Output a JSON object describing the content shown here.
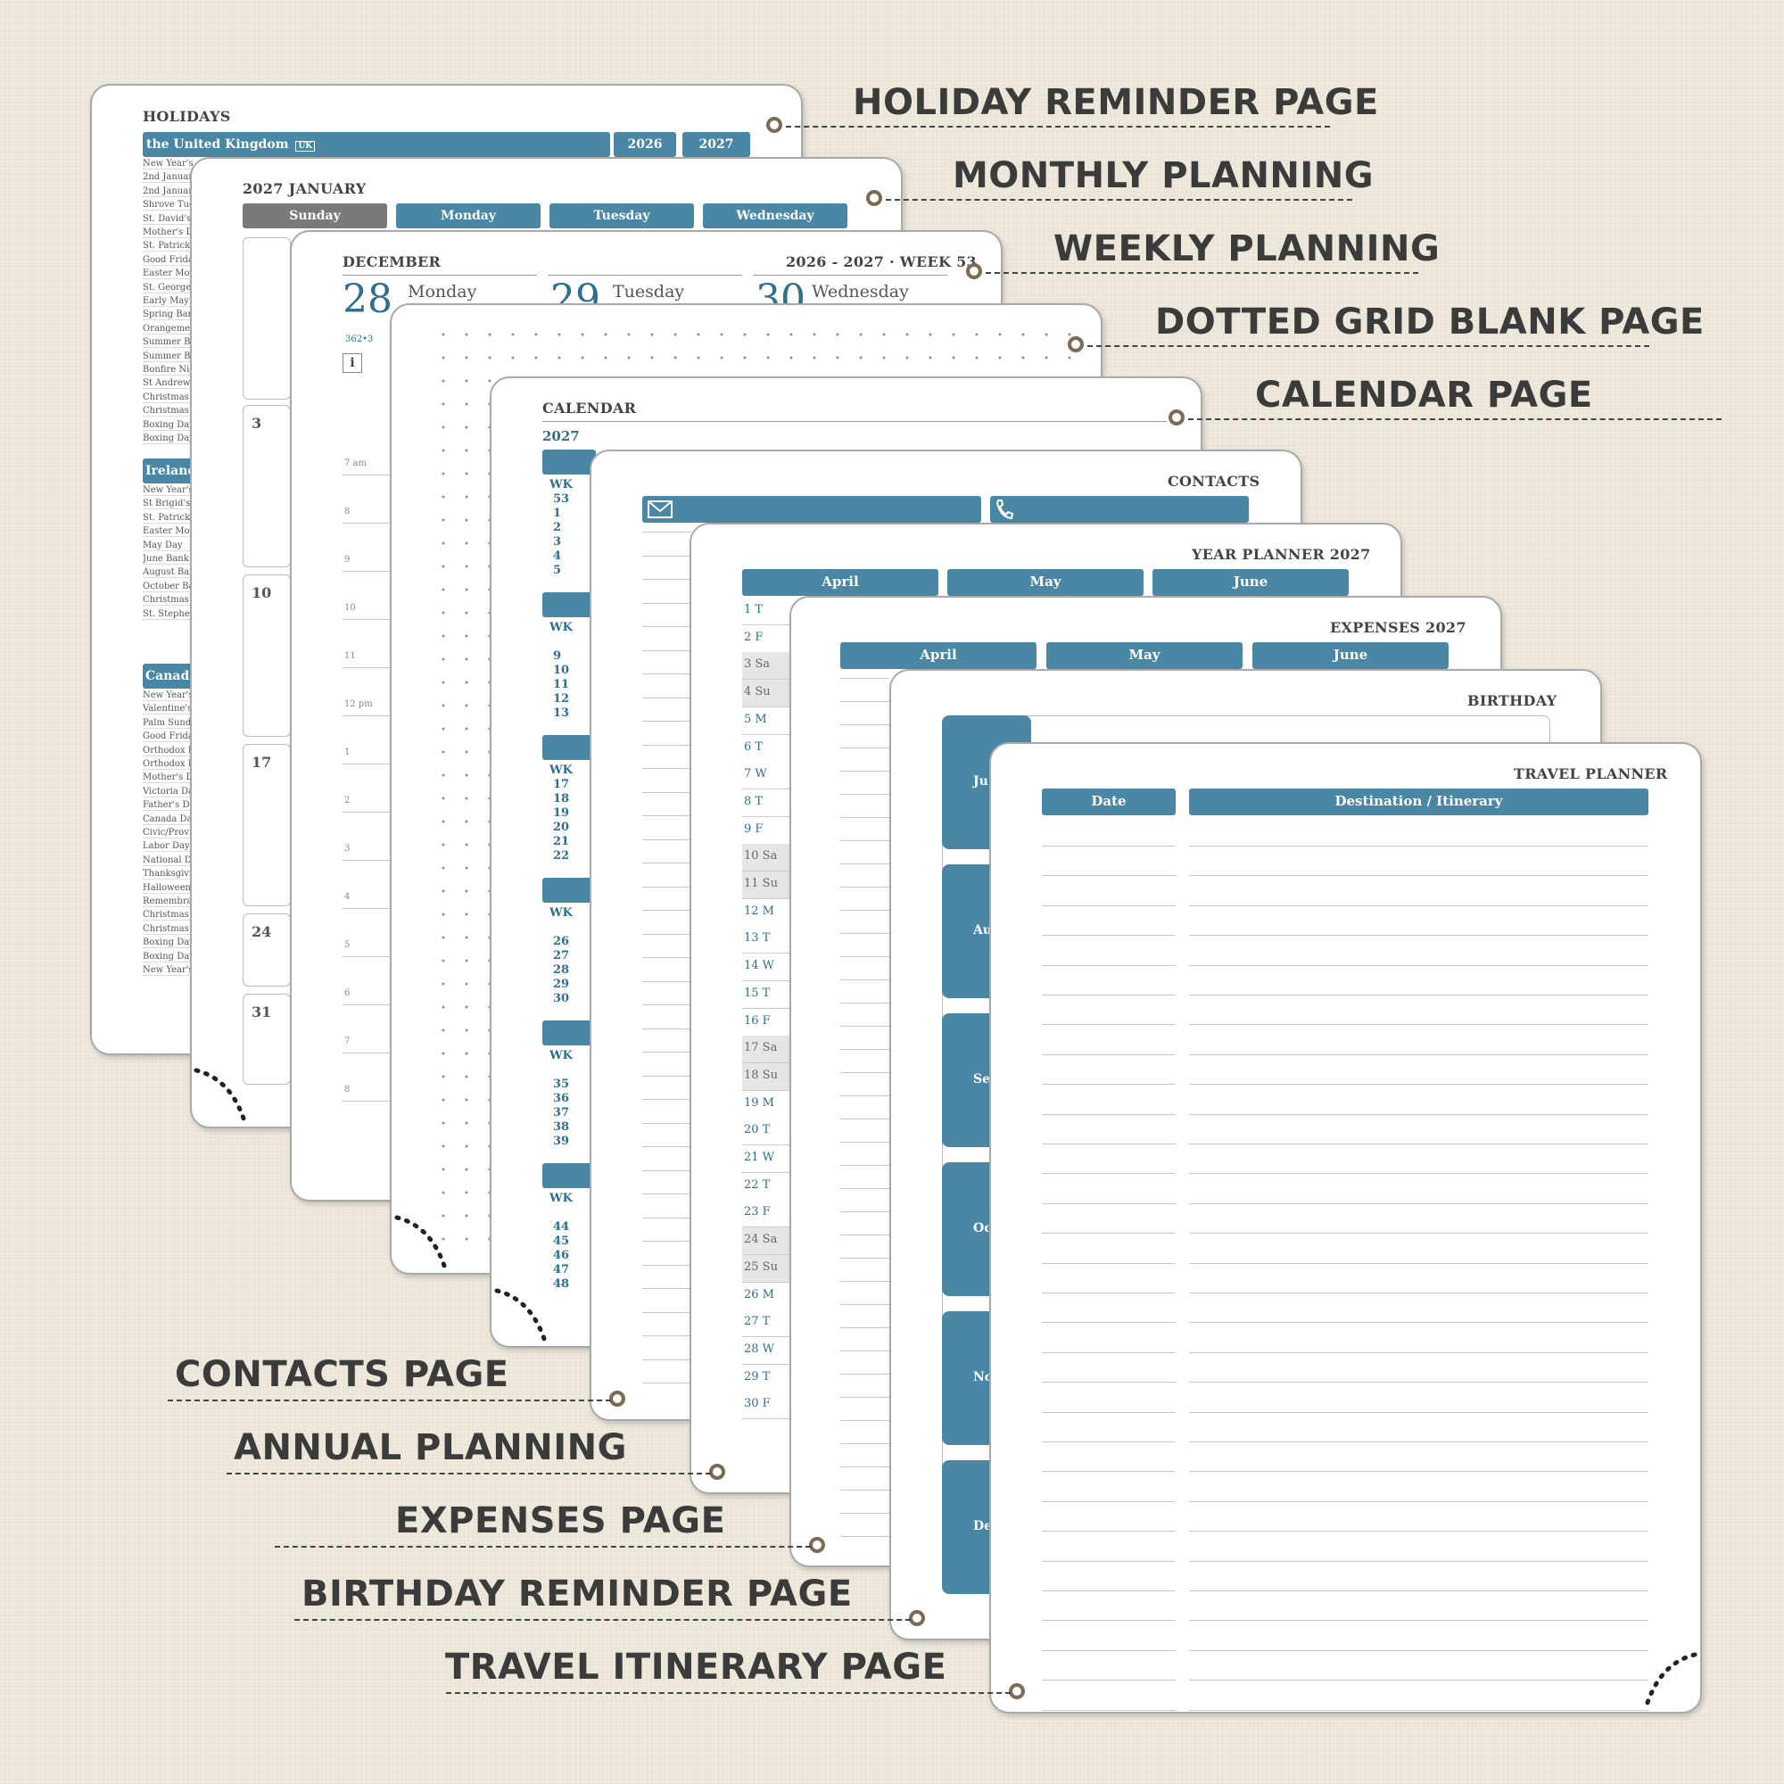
{
  "labels": {
    "holiday": "HOLIDAY REMINDER PAGE",
    "monthly": "MONTHLY PLANNING",
    "weekly": "WEEKLY PLANNING",
    "dotted": "DOTTED GRID BLANK PAGE",
    "calendar": "CALENDAR PAGE",
    "contacts": "CONTACTS PAGE",
    "annual": "ANNUAL PLANNING",
    "expenses": "EXPENSES PAGE",
    "birthday": "BIRTHDAY REMINDER PAGE",
    "travel": "TRAVEL ITINERARY PAGE"
  },
  "holidays": {
    "title": "HOLIDAYS",
    "country_uk": "the United Kingdom",
    "uk_badge": "UK",
    "year1": "2026",
    "year2": "2027",
    "uk_list": [
      "New Year's D",
      "2nd Januar",
      "2nd Januar",
      "Shrove Tue",
      "St. David's",
      "Mother's D",
      "St. Patrick's",
      "Good Frida",
      "Easter Mon",
      "St. George'",
      "Early May B",
      "Spring Ban",
      "Orangemen",
      "Summer Ba",
      "Summer Ba",
      "Bonfire Nig",
      "St Andrew'",
      "Christmas",
      "Christmas",
      "Boxing Day",
      "Boxing Day"
    ],
    "country_ie": "Ireland",
    "ie_list": [
      "New Year's",
      "St Brigid's",
      "St. Patrick's",
      "Easter Mon",
      "May Day",
      "June Bank",
      "August Ban",
      "October Ba",
      "Christmas",
      "St. Stephen"
    ],
    "country_ca": "Canada",
    "ca_list": [
      "New Year's",
      "Valentine's",
      "Palm Sunda",
      "Good Frida",
      "Orthodox E",
      "Orthodox E",
      "Mother's D",
      "Victoria Da",
      "Father's Da",
      "Canada Day",
      "Civic/Provi",
      "Labor Day",
      "National D",
      "Thanksgivi",
      "Halloween",
      "Remembra",
      "Christmas",
      "Christmas",
      "Boxing Day",
      "Boxing Day",
      "New Year's"
    ]
  },
  "monthly": {
    "title": "2027 JANUARY",
    "days": [
      "Sunday",
      "Monday",
      "Tuesday",
      "Wednesday"
    ],
    "dates": [
      "3",
      "10",
      "17",
      "24",
      "31"
    ]
  },
  "weekly": {
    "month": "DECEMBER",
    "week": "2026 - 2027 · WEEK 53",
    "d1_num": "28",
    "d1_name": "Monday",
    "d2_num": "29",
    "d2_name": "Tuesday",
    "d3_num": "30",
    "d3_name": "Wednesday",
    "day_of_year": "362•3",
    "info_icon": "i",
    "hours": [
      "7 am",
      "8",
      "9",
      "10",
      "11",
      "12 pm",
      "1",
      "2",
      "3",
      "4",
      "5",
      "6",
      "7",
      "8"
    ]
  },
  "calendar": {
    "title": "CALENDAR",
    "year": "2027",
    "wk_label": "WK",
    "blocks": [
      [
        "53",
        "1",
        "2",
        "3",
        "4",
        "5"
      ],
      [
        "9",
        "10",
        "11",
        "12",
        "13"
      ],
      [
        "17",
        "18",
        "19",
        "20",
        "21",
        "22"
      ],
      [
        "26",
        "27",
        "28",
        "29",
        "30"
      ],
      [
        "35",
        "36",
        "37",
        "38",
        "39"
      ],
      [
        "44",
        "45",
        "46",
        "47",
        "48"
      ]
    ]
  },
  "contacts": {
    "title": "CONTACTS",
    "mail_icon": "envelope-icon",
    "phone_icon": "phone-icon"
  },
  "yearplanner": {
    "title": "YEAR PLANNER 2027",
    "months": [
      "April",
      "May",
      "June"
    ],
    "rows": [
      "1  T",
      "2  F",
      "3  Sa",
      "4  Su",
      "5  M",
      "6  T",
      "7  W",
      "8  T",
      "9  F",
      "10 Sa",
      "11 Su",
      "12 M",
      "13 T",
      "14 W",
      "15 T",
      "16 F",
      "17 Sa",
      "18 Su",
      "19 M",
      "20 T",
      "21 W",
      "22 T",
      "23 F",
      "24 Sa",
      "25 Su",
      "26 M",
      "27 T",
      "28 W",
      "29 T",
      "30 F"
    ]
  },
  "expenses": {
    "title": "EXPENSES 2027",
    "months": [
      "April",
      "May",
      "June"
    ]
  },
  "birthday": {
    "title": "BIRTHDAY",
    "tabs": [
      "Ju",
      "Aug",
      "Septe",
      "Octo",
      "Nover",
      "Decen"
    ]
  },
  "travel": {
    "title": "TRAVEL PLANNER",
    "col_date": "Date",
    "col_dest": "Destination / Itinerary"
  },
  "colors": {
    "accent": "#4a87a4",
    "ring": "#7b6a55",
    "background": "#efe9dc"
  }
}
